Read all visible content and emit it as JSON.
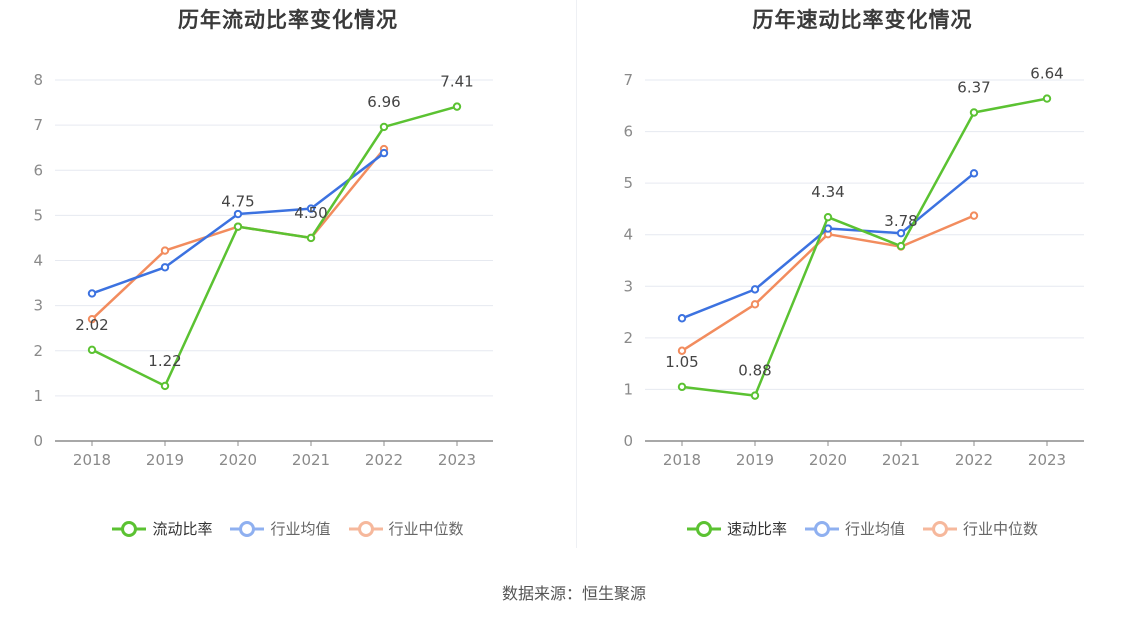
{
  "source": "数据来源：恒生聚源",
  "chart_data": [
    {
      "type": "line",
      "title": "历年流动比率变化情况",
      "categories": [
        "2018",
        "2019",
        "2020",
        "2021",
        "2022",
        "2023"
      ],
      "ylim": [
        0,
        8
      ],
      "yticks": [
        0,
        1,
        2,
        3,
        4,
        5,
        6,
        7,
        8
      ],
      "series": [
        {
          "name": "流动比率",
          "color": "#5bc232",
          "values": [
            2.02,
            1.22,
            4.75,
            4.5,
            6.96,
            7.41
          ],
          "labels": [
            "2.02",
            "1.22",
            "4.75",
            "4.50",
            "6.96",
            "7.41"
          ]
        },
        {
          "name": "行业均值",
          "color": "#3c72e0",
          "values": [
            3.27,
            3.85,
            5.03,
            5.15,
            6.38,
            null
          ]
        },
        {
          "name": "行业中位数",
          "color": "#f28c5e",
          "values": [
            2.7,
            4.22,
            4.75,
            4.5,
            6.47,
            null
          ]
        }
      ]
    },
    {
      "type": "line",
      "title": "历年速动比率变化情况",
      "categories": [
        "2018",
        "2019",
        "2020",
        "2021",
        "2022",
        "2023"
      ],
      "ylim": [
        0,
        7
      ],
      "yticks": [
        0,
        1,
        2,
        3,
        4,
        5,
        6,
        7
      ],
      "series": [
        {
          "name": "速动比率",
          "color": "#5bc232",
          "values": [
            1.05,
            0.88,
            4.34,
            3.78,
            6.37,
            6.64
          ],
          "labels": [
            "1.05",
            "0.88",
            "4.34",
            "3.78",
            "6.37",
            "6.64"
          ]
        },
        {
          "name": "行业均值",
          "color": "#3c72e0",
          "values": [
            2.38,
            2.94,
            4.12,
            4.03,
            5.19,
            null
          ]
        },
        {
          "name": "行业中位数",
          "color": "#f28c5e",
          "values": [
            1.75,
            2.65,
            4.01,
            3.77,
            4.37,
            null
          ]
        }
      ]
    }
  ]
}
